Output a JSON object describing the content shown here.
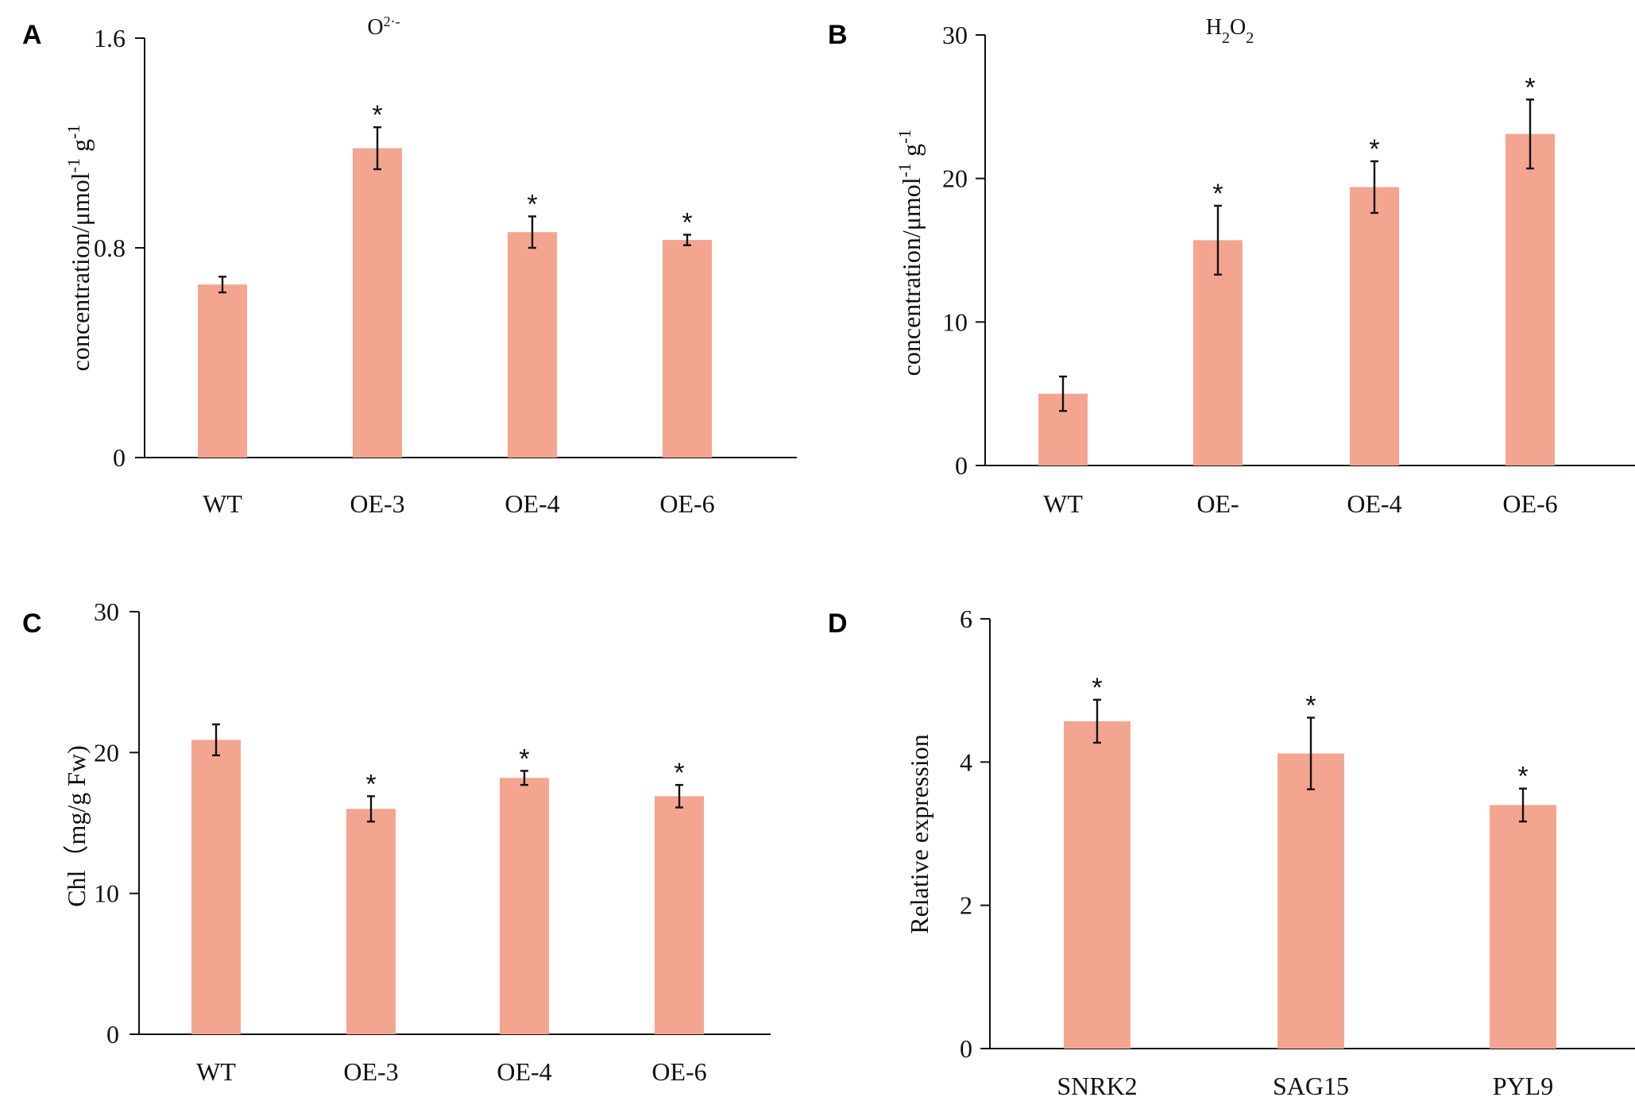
{
  "chart_data": [
    {
      "panel": "A",
      "type": "bar",
      "title": "O2·-",
      "title_main": "O",
      "title_sup": "2·-",
      "ylabel": "concentration/μmol-1 g-1",
      "ylabel_parts": [
        "concentration/μmol",
        "-1",
        " g",
        "-1"
      ],
      "xlabel": "",
      "categories": [
        "WT",
        "OE-3",
        "OE-4",
        "OE-6"
      ],
      "values": [
        0.66,
        1.18,
        0.86,
        0.83
      ],
      "errors": [
        0.03,
        0.08,
        0.06,
        0.02
      ],
      "significant": [
        "",
        "*",
        "*",
        "*"
      ],
      "yticks": [
        "0",
        "0.8",
        "1.6"
      ],
      "ylim": [
        0,
        1.6
      ]
    },
    {
      "panel": "B",
      "type": "bar",
      "title": "H2O2",
      "title_parts": [
        "H",
        "2",
        "O",
        "2"
      ],
      "ylabel": "concentration/μmol-1 g-1",
      "ylabel_parts": [
        "concentration/μmol",
        "-1",
        " g",
        "-1"
      ],
      "xlabel": "",
      "categories": [
        "WT",
        "OE-",
        "OE-4",
        "OE-6"
      ],
      "values": [
        5.0,
        15.7,
        19.4,
        23.1
      ],
      "errors": [
        1.2,
        2.4,
        1.8,
        2.4
      ],
      "significant": [
        "",
        "*",
        "*",
        "*"
      ],
      "yticks": [
        "0",
        "10",
        "20",
        "30"
      ],
      "ylim": [
        0,
        30
      ]
    },
    {
      "panel": "C",
      "type": "bar",
      "title": "",
      "ylabel": "Chl（mg/g Fw)",
      "xlabel": "",
      "categories": [
        "WT",
        "OE-3",
        "OE-4",
        "OE-6"
      ],
      "values": [
        20.9,
        16.0,
        18.2,
        16.9
      ],
      "errors": [
        1.1,
        0.9,
        0.5,
        0.8
      ],
      "significant": [
        "",
        "*",
        "*",
        "*"
      ],
      "yticks": [
        "0",
        "10",
        "20",
        "30"
      ],
      "ylim": [
        0,
        30
      ]
    },
    {
      "panel": "D",
      "type": "bar",
      "title": "",
      "ylabel": "Relative expression",
      "xlabel": "",
      "categories": [
        "SNRK2",
        "SAG15",
        "PYL9"
      ],
      "values": [
        4.57,
        4.12,
        3.4
      ],
      "errors": [
        0.3,
        0.5,
        0.23
      ],
      "significant": [
        "*",
        "*",
        "*"
      ],
      "yticks": [
        "0",
        "2",
        "4",
        "6"
      ],
      "ylim": [
        0,
        6
      ]
    }
  ],
  "colors": {
    "bar": "#f4a590",
    "axis": "#111111"
  }
}
